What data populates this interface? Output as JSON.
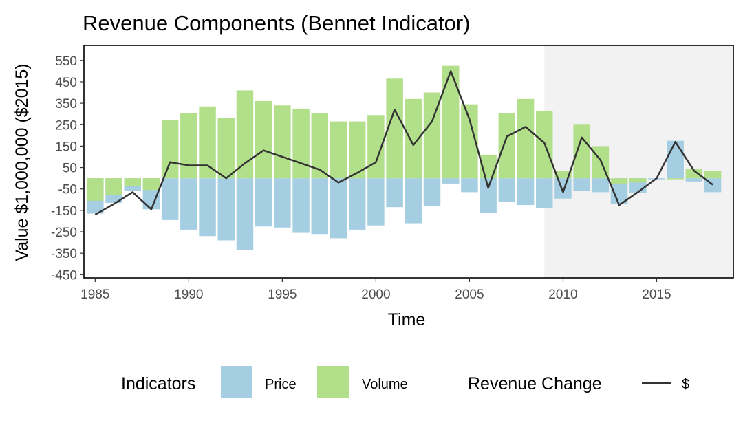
{
  "chart_data": {
    "type": "bar",
    "title": "Revenue Components (Bennet Indicator)",
    "xlabel": "Time",
    "ylabel": "Value $1,000,000 ($2015)",
    "xlim": [
      1984.4,
      2019.1
    ],
    "ylim": [
      -465,
      620
    ],
    "x_ticks": [
      1985,
      1990,
      1995,
      2000,
      2005,
      2010,
      2015
    ],
    "y_ticks": [
      550,
      450,
      350,
      250,
      150,
      50,
      -50,
      -150,
      -250,
      -350,
      -450
    ],
    "shaded_region": {
      "from": 2009,
      "to": 2019.1,
      "color": "#f2f2f2"
    },
    "x": [
      1985,
      1986,
      1987,
      1988,
      1989,
      1990,
      1991,
      1992,
      1993,
      1994,
      1995,
      1996,
      1997,
      1998,
      1999,
      2000,
      2001,
      2002,
      2003,
      2004,
      2005,
      2006,
      2007,
      2008,
      2009,
      2010,
      2011,
      2012,
      2013,
      2014,
      2015,
      2016,
      2017,
      2018
    ],
    "series": [
      {
        "name": "Price",
        "color": "#a6cee3",
        "values": [
          -165,
          -115,
          -60,
          -145,
          -195,
          -240,
          -270,
          -290,
          -335,
          -225,
          -230,
          -255,
          -260,
          -280,
          -240,
          -220,
          -135,
          -210,
          -130,
          -25,
          -65,
          -160,
          -110,
          -125,
          -140,
          -95,
          -60,
          -65,
          -120,
          -70,
          -5,
          175,
          -15,
          -65
        ]
      },
      {
        "name": "Volume",
        "color": "#b2df8a",
        "values": [
          -105,
          -80,
          -35,
          -55,
          270,
          305,
          335,
          280,
          410,
          360,
          340,
          325,
          305,
          265,
          265,
          295,
          465,
          370,
          400,
          525,
          345,
          110,
          305,
          370,
          315,
          35,
          250,
          150,
          -25,
          -20,
          0,
          -5,
          45,
          35
        ]
      }
    ],
    "line": {
      "name": "$",
      "color": "#333333",
      "values": [
        -170,
        -120,
        -65,
        -145,
        75,
        60,
        60,
        0,
        70,
        130,
        100,
        70,
        40,
        -20,
        25,
        75,
        320,
        155,
        265,
        500,
        275,
        -45,
        195,
        240,
        165,
        -65,
        190,
        85,
        -125,
        -65,
        0,
        170,
        35,
        -30
      ]
    },
    "legend": {
      "position": "bottom",
      "indicators_title": "Indicators",
      "revenue_title": "Revenue Change"
    }
  }
}
